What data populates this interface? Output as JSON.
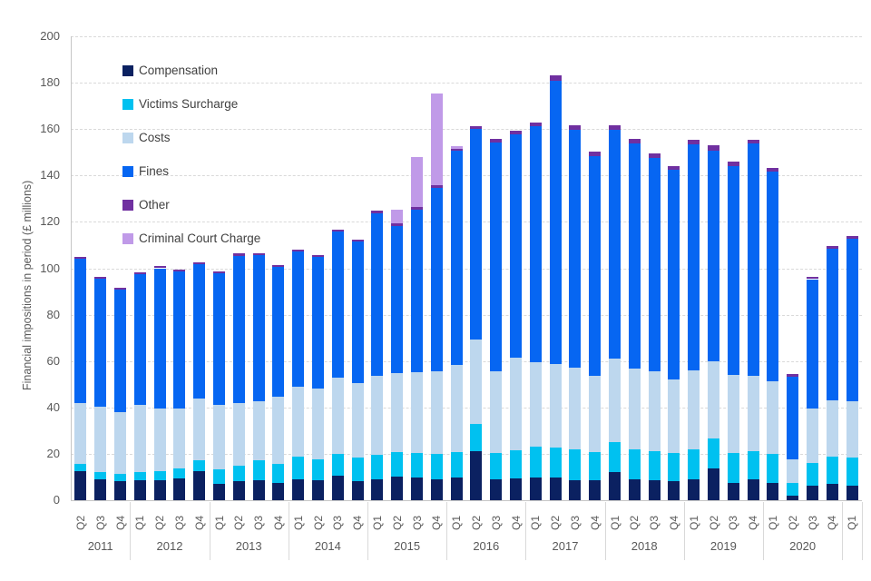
{
  "chart_data": {
    "type": "bar",
    "stacked": true,
    "title": "",
    "ylabel": "Financial impositions in period (£ millions)",
    "xlabel": "",
    "ylim": [
      0,
      200
    ],
    "ytick_step": 20,
    "grid": "horizontal-dashed",
    "legend_position": "inside-top-left",
    "year_groups": [
      {
        "label": "2011",
        "quarters": [
          "Q2",
          "Q3",
          "Q4"
        ]
      },
      {
        "label": "2012",
        "quarters": [
          "Q1",
          "Q2",
          "Q3",
          "Q4"
        ]
      },
      {
        "label": "2013",
        "quarters": [
          "Q1",
          "Q2",
          "Q3",
          "Q4"
        ]
      },
      {
        "label": "2014",
        "quarters": [
          "Q1",
          "Q2",
          "Q3",
          "Q4"
        ]
      },
      {
        "label": "2015",
        "quarters": [
          "Q1",
          "Q2",
          "Q3",
          "Q4"
        ]
      },
      {
        "label": "2016",
        "quarters": [
          "Q1",
          "Q2",
          "Q3",
          "Q4"
        ]
      },
      {
        "label": "2017",
        "quarters": [
          "Q1",
          "Q2",
          "Q3",
          "Q4"
        ]
      },
      {
        "label": "2018",
        "quarters": [
          "Q1",
          "Q2",
          "Q3",
          "Q4"
        ]
      },
      {
        "label": "2019",
        "quarters": [
          "Q1",
          "Q2",
          "Q3",
          "Q4"
        ]
      },
      {
        "label": "2020",
        "quarters": [
          "Q1",
          "Q2",
          "Q3",
          "Q4"
        ]
      },
      {
        "label": "",
        "quarters": [
          "Q1"
        ]
      }
    ],
    "series": [
      {
        "name": "Compensation",
        "color": "#0b2161",
        "values": [
          12.5,
          9.0,
          8.2,
          8.6,
          8.6,
          9.5,
          12.4,
          7.2,
          8.2,
          8.6,
          7.6,
          8.9,
          8.6,
          10.4,
          8.3,
          8.9,
          10.2,
          9.8,
          9.1,
          9.9,
          21.0,
          9.1,
          9.4,
          9.9,
          9.7,
          8.7,
          8.7,
          12.0,
          9.1,
          8.6,
          8.3,
          9.1,
          13.7,
          7.3,
          9.1,
          7.3,
          2.0,
          6.3,
          6.9,
          6.3
        ]
      },
      {
        "name": "Victims Surcharge",
        "color": "#00c1f0",
        "values": [
          3.0,
          3.0,
          3.0,
          3.5,
          3.9,
          4.2,
          4.7,
          6.0,
          6.6,
          8.5,
          8.1,
          9.9,
          9.0,
          9.6,
          10.1,
          10.7,
          10.4,
          10.6,
          10.9,
          10.7,
          12.0,
          11.3,
          12.0,
          13.3,
          13.1,
          13.3,
          12.2,
          13.2,
          12.9,
          12.4,
          12.0,
          12.9,
          13.0,
          13.0,
          12.0,
          12.7,
          5.3,
          9.7,
          11.8,
          12.0
        ]
      },
      {
        "name": "Costs",
        "color": "#bdd7ee",
        "values": [
          26.5,
          28.5,
          26.8,
          28.9,
          27.0,
          25.8,
          26.6,
          27.8,
          27.0,
          25.7,
          28.8,
          30.0,
          30.5,
          32.8,
          31.9,
          34.2,
          34.3,
          34.9,
          35.5,
          37.8,
          36.3,
          35.1,
          40.1,
          36.4,
          35.8,
          35.1,
          32.9,
          35.7,
          34.8,
          34.5,
          31.8,
          33.9,
          33.3,
          33.7,
          32.7,
          31.3,
          10.4,
          23.5,
          24.3,
          24.2
        ]
      },
      {
        "name": "Fines",
        "color": "#0666f2",
        "values": [
          62.0,
          55.0,
          52.8,
          56.3,
          60.5,
          59.2,
          58.0,
          56.8,
          63.6,
          62.9,
          56.0,
          58.3,
          56.7,
          63.0,
          61.2,
          70.0,
          63.2,
          70.0,
          79.2,
          92.4,
          90.8,
          98.7,
          96.3,
          101.8,
          122.2,
          102.7,
          94.4,
          98.7,
          96.9,
          92.1,
          90.3,
          97.4,
          90.7,
          89.9,
          100.0,
          90.3,
          35.7,
          55.8,
          65.3,
          70.2
        ]
      },
      {
        "name": "Other",
        "color": "#7030a0",
        "values": [
          0.8,
          0.8,
          0.9,
          0.8,
          0.9,
          0.9,
          0.9,
          0.9,
          0.9,
          0.9,
          0.8,
          0.9,
          0.9,
          0.9,
          0.9,
          0.9,
          1.1,
          1.0,
          1.2,
          0.6,
          1.3,
          1.6,
          1.3,
          1.3,
          2.5,
          1.7,
          1.9,
          1.9,
          2.2,
          1.8,
          1.8,
          2.0,
          2.3,
          2.0,
          1.7,
          1.7,
          0.9,
          0.8,
          1.1,
          1.0
        ]
      },
      {
        "name": "Criminal Court Charge",
        "color": "#c09ae8",
        "values": [
          0,
          0,
          0,
          0,
          0,
          0,
          0,
          0,
          0,
          0,
          0,
          0,
          0,
          0,
          0,
          0,
          5.9,
          21.7,
          39.6,
          1.4,
          0,
          0,
          0,
          0,
          0,
          0,
          0,
          0,
          0,
          0,
          0,
          0,
          0,
          0,
          0,
          0,
          0,
          0,
          0,
          0
        ]
      }
    ]
  },
  "legend": {
    "items": [
      {
        "label": "Compensation",
        "color": "#0b2161"
      },
      {
        "label": "Victims Surcharge",
        "color": "#00c1f0"
      },
      {
        "label": "Costs",
        "color": "#bdd7ee"
      },
      {
        "label": "Fines",
        "color": "#0666f2"
      },
      {
        "label": "Other",
        "color": "#7030a0"
      },
      {
        "label": "Criminal Court Charge",
        "color": "#c09ae8"
      }
    ]
  },
  "axes": {
    "y_title": "Financial impositions in period (£ millions)",
    "y_ticks": [
      "0",
      "20",
      "40",
      "60",
      "80",
      "100",
      "120",
      "140",
      "160",
      "180",
      "200"
    ]
  },
  "colors": {
    "tick_text": "#595959",
    "legend_text": "#404040",
    "gridline": "#d9d9d9",
    "axis_line": "#c6c6c6"
  }
}
